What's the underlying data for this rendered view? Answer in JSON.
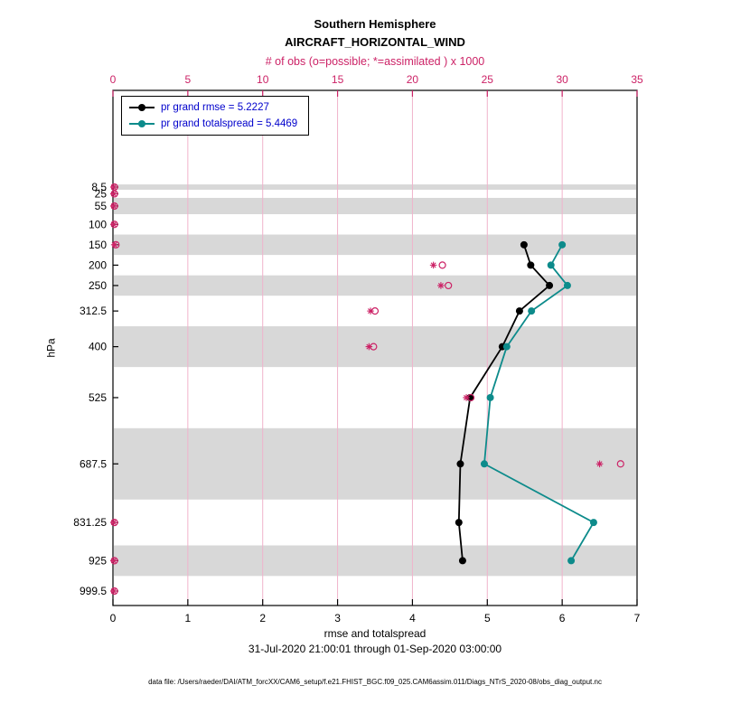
{
  "title": {
    "line1": "Southern Hemisphere",
    "line2": "AIRCRAFT_HORIZONTAL_WIND",
    "obs_axis_title": "# of obs (o=possible; *=assimilated ) x 1000"
  },
  "legend": {
    "rmse_label": "pr grand rmse = 5.2227",
    "totalspread_label": "pr grand totalspread = 5.4469"
  },
  "axes": {
    "x_bottom": {
      "label": "rmse and totalspread",
      "ticks": [
        0,
        1,
        2,
        3,
        4,
        5,
        6,
        7
      ],
      "range": [
        0,
        7
      ]
    },
    "x_top": {
      "ticks": [
        0,
        5,
        10,
        15,
        20,
        25,
        30,
        35
      ],
      "range": [
        0,
        35
      ]
    },
    "y": {
      "label": "hPa",
      "levels": [
        8.5,
        25,
        55,
        100,
        150,
        200,
        250,
        312.5,
        400,
        525,
        687.5,
        831.25,
        925,
        999.5
      ]
    }
  },
  "subtitle": "31-Jul-2020 21:00:01 through 01-Sep-2020 03:00:00",
  "footer": "data file: /Users/raeder/DAI/ATM_forcXX/CAM6_setup/f.e21.FHIST_BGC.f09_025.CAM6assim.011/Diags_NTrS_2020-08/obs_diag_output.nc",
  "colors": {
    "rmse": "#000000",
    "totalspread": "#0d8b8b",
    "obs": "#cc2266",
    "obs_grid": "#f0b3cb",
    "band": "#d8d8d8",
    "legend_text": "#0000cc",
    "axis": "#000000"
  },
  "chart_data": {
    "type": "line",
    "orientation": "vertical-profile",
    "title": "Southern Hemisphere AIRCRAFT_HORIZONTAL_WIND",
    "xlabel": "rmse and totalspread",
    "ylabel": "hPa",
    "x2label": "# of obs (o=possible; *=assimilated ) x 1000",
    "legend_position": "top-left",
    "xlim": [
      0,
      7
    ],
    "obs_xlim": [
      0,
      35
    ],
    "y_axis_inverted_pressure": true,
    "levels_hpa": [
      8.5,
      25,
      55,
      100,
      150,
      200,
      250,
      312.5,
      400,
      525,
      687.5,
      831.25,
      925,
      999.5
    ],
    "series": [
      {
        "name": "pr grand rmse",
        "grand_value": 5.2227,
        "color": "#000000",
        "values": [
          null,
          null,
          null,
          null,
          5.49,
          5.58,
          5.83,
          5.43,
          5.2,
          4.77,
          4.64,
          4.62,
          4.67,
          null
        ]
      },
      {
        "name": "pr grand totalspread",
        "grand_value": 5.4469,
        "color": "#0d8b8b",
        "values": [
          null,
          null,
          null,
          null,
          6.0,
          5.85,
          6.07,
          5.59,
          5.26,
          5.04,
          4.96,
          6.42,
          6.12,
          null
        ]
      }
    ],
    "obs_counts_x1000": {
      "possible": [
        0.1,
        0.1,
        0.1,
        0.1,
        0.2,
        22.0,
        22.4,
        17.5,
        17.4,
        23.9,
        33.9,
        0.1,
        0.1,
        0.1
      ],
      "assimilated": [
        0.05,
        0.05,
        0.05,
        0.05,
        0.1,
        21.4,
        21.9,
        17.2,
        17.1,
        23.6,
        32.5,
        0.05,
        0.05,
        0.05
      ]
    },
    "gray_band_edges_hpa": [
      [
        2,
        15
      ],
      [
        35,
        75
      ],
      [
        125,
        175
      ],
      [
        225,
        275
      ],
      [
        350,
        450
      ],
      [
        600,
        775
      ],
      [
        887.5,
        962.5
      ]
    ],
    "grid": "pink vertical lines at top-axis ticks 5..30"
  }
}
